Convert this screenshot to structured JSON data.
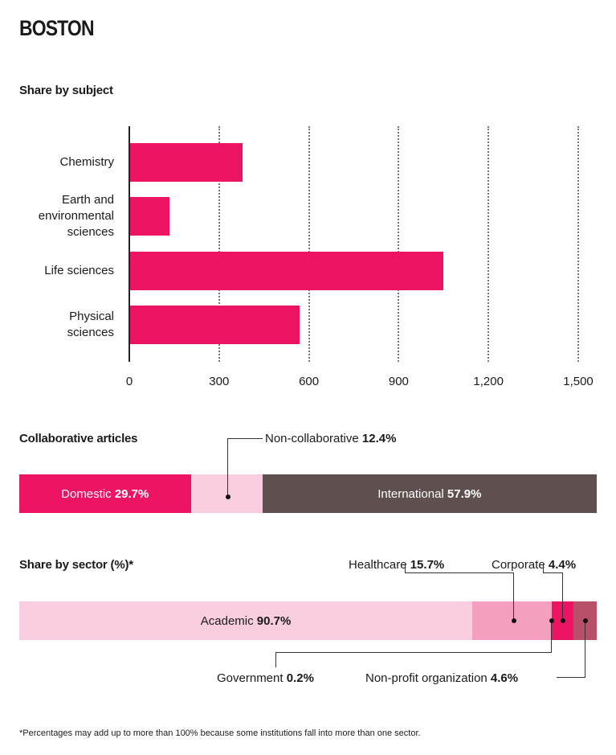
{
  "title": "BOSTON",
  "chart_data": [
    {
      "type": "bar",
      "orientation": "horizontal",
      "title": "Share by subject",
      "categories": [
        "Chemistry",
        "Earth and environmental sciences",
        "Life sciences",
        "Physical sciences"
      ],
      "category_lines": [
        [
          "Chemistry"
        ],
        [
          "Earth and",
          "environmental",
          "sciences"
        ],
        [
          "Life sciences"
        ],
        [
          "Physical",
          "sciences"
        ]
      ],
      "values": [
        376,
        131,
        1046,
        566
      ],
      "xlim": [
        0,
        1500
      ],
      "xticks": [
        0,
        300,
        600,
        900,
        1200,
        1500
      ],
      "xtick_labels": [
        "0",
        "300",
        "600",
        "900",
        "1,200",
        "1,500"
      ],
      "grid": true,
      "color": "#ee1464"
    },
    {
      "type": "bar",
      "stacked": true,
      "title": "Collaborative articles",
      "segments": [
        {
          "name": "Domestic",
          "value": 29.7,
          "label": "29.7%",
          "color": "#ee1464"
        },
        {
          "name": "Non-collaborative",
          "value": 12.4,
          "label": "12.4%",
          "color": "#f9cde0"
        },
        {
          "name": "International",
          "value": 57.9,
          "label": "57.9%",
          "color": "#5f4f4f"
        }
      ]
    },
    {
      "type": "bar",
      "stacked": true,
      "title": "Share by sector (%)*",
      "segments": [
        {
          "name": "Academic",
          "value": 90.7,
          "label": "90.7%",
          "color": "#f9cde0"
        },
        {
          "name": "Healthcare",
          "value": 15.7,
          "label": "15.7%",
          "color": "#f49fc0"
        },
        {
          "name": "Government",
          "value": 0.2,
          "label": "0.2%",
          "color": "#f49fc0"
        },
        {
          "name": "Corporate",
          "value": 4.4,
          "label": "4.4%",
          "color": "#ee1464"
        },
        {
          "name": "Non-profit organization",
          "value": 4.6,
          "label": "4.6%",
          "color": "#b9506a"
        }
      ]
    }
  ],
  "footnote": "*Percentages may add up to more than 100% because some institutions fall into more than one sector."
}
